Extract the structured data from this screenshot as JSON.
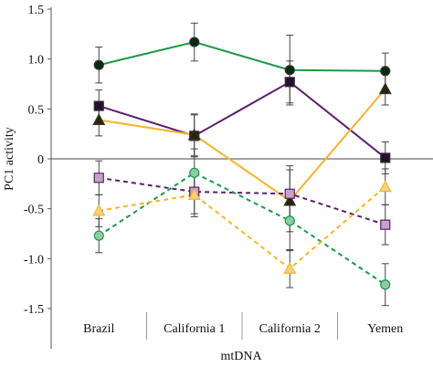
{
  "chart_data": {
    "type": "line",
    "title": "",
    "xlabel": "mtDNA",
    "ylabel": "PC1 activity",
    "ylim": [
      -1.5,
      1.5
    ],
    "yticks": [
      "1.5",
      "1.0",
      "0.5",
      "0",
      "-0.5",
      "-1.0",
      "-1.5"
    ],
    "ytick_values": [
      1.5,
      1.0,
      0.5,
      0,
      -0.5,
      -1.0,
      -1.5
    ],
    "categories": [
      "Brazil",
      "California 1",
      "California 2",
      "Yemen"
    ],
    "grid": false,
    "legend": "none",
    "series": [
      {
        "color": "#1a9a46",
        "marker": "circle",
        "marker_fill": "#0b2a14",
        "line_style": "solid",
        "values": [
          0.94,
          1.17,
          0.89,
          0.88
        ],
        "errors": [
          0.18,
          0.19,
          0.35,
          0.18
        ]
      },
      {
        "color": "#5a1f6b",
        "marker": "square",
        "marker_fill": "#241130",
        "line_style": "solid",
        "values": [
          0.53,
          0.23,
          0.77,
          0.01
        ],
        "errors": [
          0.16,
          0.21,
          0.21,
          0.16
        ]
      },
      {
        "color": "#f5b52a",
        "marker": "triangle",
        "marker_fill": "#2b2408",
        "line_style": "solid",
        "values": [
          0.39,
          0.24,
          -0.42,
          0.7
        ],
        "errors": [
          0.16,
          0.21,
          0.31,
          0.16
        ]
      },
      {
        "color": "#5a1f6b",
        "marker": "square",
        "marker_fill": "#c7a3cc",
        "line_style": "dashed",
        "values": [
          -0.19,
          -0.33,
          -0.35,
          -0.66
        ],
        "errors": [
          0.17,
          0.22,
          0.28,
          0.2
        ]
      },
      {
        "color": "#1a9a46",
        "marker": "circle",
        "marker_fill": "#8fcca4",
        "line_style": "dashed",
        "values": [
          -0.77,
          -0.14,
          -0.62,
          -1.26
        ],
        "errors": [
          0.17,
          0.24,
          0.3,
          0.21
        ]
      },
      {
        "color": "#f5b52a",
        "marker": "triangle",
        "marker_fill": "#f1d27e",
        "line_style": "dashed",
        "values": [
          -0.52,
          -0.36,
          -1.1,
          -0.28
        ],
        "errors": [
          0.16,
          0.22,
          0.19,
          0.18
        ]
      }
    ]
  }
}
